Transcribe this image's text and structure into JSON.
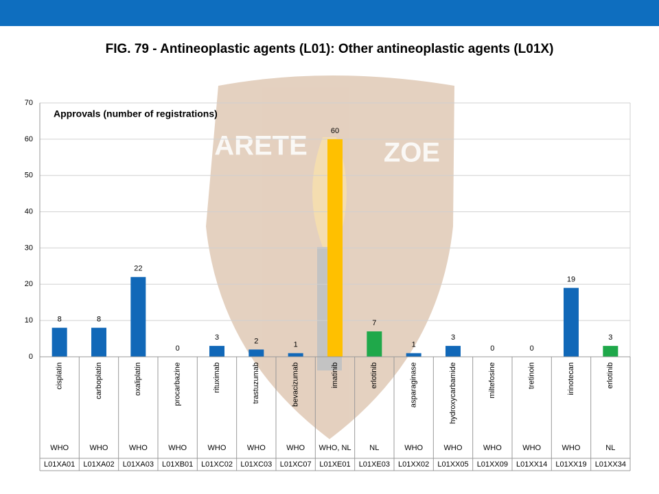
{
  "chart_data": {
    "type": "bar",
    "title": "FIG. 79 - Antineoplastic agents (L01): Other antineoplastic agents (L01X)",
    "subtitle": "Approvals (number of registrations)",
    "watermark": [
      "ARETE",
      "ZOE"
    ],
    "categories": [
      "cisplatin",
      "carboplatin",
      "oxaliplatin",
      "procarbazine",
      "rituximab",
      "trastuzumab",
      "bevacizumab",
      "imatinib",
      "erlotinib",
      "asparaginase",
      "hydroxycarbamide",
      "miltefosine",
      "tretinoin",
      "irinotecan",
      "erlotinib"
    ],
    "sources": [
      "WHO",
      "WHO",
      "WHO",
      "WHO",
      "WHO",
      "WHO",
      "WHO",
      "WHO, NL",
      "NL",
      "WHO",
      "WHO",
      "WHO",
      "WHO",
      "WHO",
      "NL"
    ],
    "codes": [
      "L01XA01",
      "L01XA02",
      "L01XA03",
      "L01XB01",
      "L01XC02",
      "L01XC03",
      "L01XC07",
      "L01XE01",
      "L01XE03",
      "L01XX02",
      "L01XX05",
      "L01XX09",
      "L01XX14",
      "L01XX19",
      "L01XX34"
    ],
    "values": [
      8,
      8,
      22,
      0,
      3,
      2,
      1,
      60,
      7,
      1,
      3,
      0,
      0,
      19,
      3
    ],
    "colors": [
      "#1168b8",
      "#1168b8",
      "#1168b8",
      "#1168b8",
      "#1168b8",
      "#1168b8",
      "#1168b8",
      "#ffc000",
      "#1fa84a",
      "#1168b8",
      "#1168b8",
      "#1168b8",
      "#1168b8",
      "#1168b8",
      "#1fa84a"
    ],
    "ylim": [
      0,
      70
    ],
    "yticks": [
      0,
      10,
      20,
      30,
      40,
      50,
      60,
      70
    ],
    "grid": true
  }
}
